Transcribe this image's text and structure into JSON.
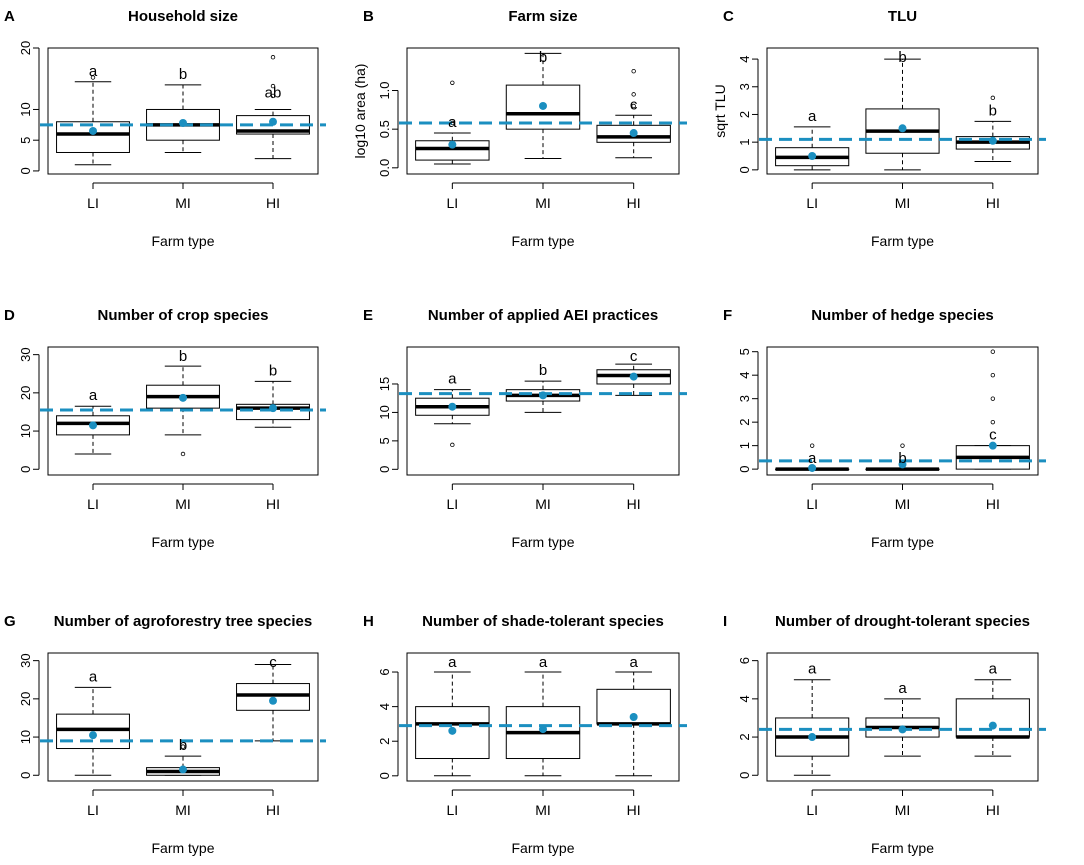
{
  "colors": {
    "mean": "#1b8fc0",
    "reference_line": "#1b8fc0"
  },
  "chart_data": [
    {
      "type": "box",
      "panel": "A",
      "title": "Household size",
      "xlabel": "Farm type",
      "ylabel": "",
      "ylim": [
        -0.5,
        20
      ],
      "yticks": [
        0,
        5,
        10,
        20
      ],
      "yticklabels": [
        "0",
        "5",
        "10",
        "20"
      ],
      "reference": 7.5,
      "groups": [
        {
          "label": "LI",
          "min": 1,
          "q1": 3,
          "median": 6,
          "q3": 8,
          "max": 14.5,
          "mean": 6.5,
          "outliers": [
            15.2
          ],
          "letter": "a"
        },
        {
          "label": "MI",
          "min": 3,
          "q1": 5,
          "median": 7.5,
          "q3": 10,
          "max": 14,
          "mean": 7.8,
          "outliers": [],
          "letter": "b"
        },
        {
          "label": "HI",
          "min": 2,
          "q1": 6,
          "median": 6.5,
          "q3": 9,
          "max": 10,
          "mean": 8,
          "outliers": [
            12.2,
            13.8,
            18.5
          ],
          "letter": "ab"
        }
      ]
    },
    {
      "type": "box",
      "panel": "B",
      "title": "Farm size",
      "xlabel": "Farm type",
      "ylabel": "log10 area (ha)",
      "ylim": [
        -0.08,
        1.55
      ],
      "yticks": [
        0.0,
        0.5,
        1.0
      ],
      "yticklabels": [
        "0.0",
        "0.5",
        "1.0"
      ],
      "reference": 0.58,
      "groups": [
        {
          "label": "LI",
          "min": 0.05,
          "q1": 0.1,
          "median": 0.25,
          "q3": 0.35,
          "max": 0.45,
          "mean": 0.3,
          "outliers": [
            0.58,
            1.1
          ],
          "letter": "a"
        },
        {
          "label": "MI",
          "min": 0.12,
          "q1": 0.5,
          "median": 0.7,
          "q3": 1.07,
          "max": 1.48,
          "mean": 0.8,
          "outliers": [],
          "letter": "b"
        },
        {
          "label": "HI",
          "min": 0.13,
          "q1": 0.33,
          "median": 0.4,
          "q3": 0.55,
          "max": 0.68,
          "mean": 0.45,
          "outliers": [
            0.8,
            0.95,
            1.25
          ],
          "letter": "c"
        }
      ]
    },
    {
      "type": "box",
      "panel": "C",
      "title": "TLU",
      "xlabel": "Farm type",
      "ylabel": "sqrt TLU",
      "ylim": [
        -0.15,
        4.4
      ],
      "yticks": [
        0,
        1,
        2,
        3,
        4
      ],
      "yticklabels": [
        "0",
        "1",
        "2",
        "3",
        "4"
      ],
      "reference": 1.1,
      "groups": [
        {
          "label": "LI",
          "min": 0,
          "q1": 0.15,
          "median": 0.45,
          "q3": 0.8,
          "max": 1.55,
          "mean": 0.5,
          "outliers": [],
          "letter": "a"
        },
        {
          "label": "MI",
          "min": 0,
          "q1": 0.6,
          "median": 1.4,
          "q3": 2.2,
          "max": 4,
          "mean": 1.5,
          "outliers": [],
          "letter": "b"
        },
        {
          "label": "HI",
          "min": 0.3,
          "q1": 0.75,
          "median": 1,
          "q3": 1.2,
          "max": 1.75,
          "mean": 1.05,
          "outliers": [
            2.6
          ],
          "letter": "b"
        }
      ]
    },
    {
      "type": "box",
      "panel": "D",
      "title": "Number of crop species",
      "xlabel": "Farm type",
      "ylabel": "",
      "ylim": [
        -1.5,
        32
      ],
      "yticks": [
        0,
        10,
        20,
        30
      ],
      "yticklabels": [
        "0",
        "10",
        "20",
        "30"
      ],
      "reference": 15.5,
      "groups": [
        {
          "label": "LI",
          "min": 4,
          "q1": 9,
          "median": 12,
          "q3": 14,
          "max": 16.5,
          "mean": 11.5,
          "outliers": [],
          "letter": "a"
        },
        {
          "label": "MI",
          "min": 9,
          "q1": 16,
          "median": 19,
          "q3": 22,
          "max": 27,
          "mean": 18.7,
          "outliers": [
            4
          ],
          "letter": "b"
        },
        {
          "label": "HI",
          "min": 11,
          "q1": 13,
          "median": 16,
          "q3": 17,
          "max": 23,
          "mean": 16,
          "outliers": [],
          "letter": "b"
        }
      ]
    },
    {
      "type": "box",
      "panel": "E",
      "title": "Number of applied AEI practices",
      "xlabel": "Farm type",
      "ylabel": "",
      "ylim": [
        -1,
        21.5
      ],
      "yticks": [
        0,
        5,
        10,
        15
      ],
      "yticklabels": [
        "0",
        "5",
        "10",
        "15"
      ],
      "reference": 13.3,
      "groups": [
        {
          "label": "LI",
          "min": 8,
          "q1": 9.5,
          "median": 11,
          "q3": 12.5,
          "max": 14,
          "mean": 11,
          "outliers": [
            4.3
          ],
          "letter": "a"
        },
        {
          "label": "MI",
          "min": 10,
          "q1": 12,
          "median": 13,
          "q3": 14,
          "max": 15.5,
          "mean": 13,
          "outliers": [],
          "letter": "b"
        },
        {
          "label": "HI",
          "min": 13,
          "q1": 15,
          "median": 16.5,
          "q3": 17.5,
          "max": 18.5,
          "mean": 16.3,
          "outliers": [],
          "letter": "c"
        }
      ]
    },
    {
      "type": "box",
      "panel": "F",
      "title": "Number of hedge species",
      "xlabel": "Farm type",
      "ylabel": "",
      "ylim": [
        -0.25,
        5.2
      ],
      "yticks": [
        0,
        1,
        2,
        3,
        4,
        5
      ],
      "yticklabels": [
        "0",
        "1",
        "2",
        "3",
        "4",
        "5"
      ],
      "reference": 0.35,
      "groups": [
        {
          "label": "LI",
          "min": 0,
          "q1": 0,
          "median": 0,
          "q3": 0,
          "max": 0,
          "mean": 0.05,
          "outliers": [
            1
          ],
          "letter": "a"
        },
        {
          "label": "MI",
          "min": 0,
          "q1": 0,
          "median": 0,
          "q3": 0,
          "max": 0,
          "mean": 0.2,
          "outliers": [
            1
          ],
          "letter": "b"
        },
        {
          "label": "HI",
          "min": 0,
          "q1": 0,
          "median": 0.5,
          "q3": 1,
          "max": 1,
          "mean": 1,
          "outliers": [
            2,
            3,
            4,
            5
          ],
          "letter": "c"
        }
      ]
    },
    {
      "type": "box",
      "panel": "G",
      "title": "Number of agroforestry tree species",
      "xlabel": "Farm type",
      "ylabel": "",
      "ylim": [
        -1.5,
        32
      ],
      "yticks": [
        0,
        10,
        20,
        30
      ],
      "yticklabels": [
        "0",
        "10",
        "20",
        "30"
      ],
      "reference": 9,
      "groups": [
        {
          "label": "LI",
          "min": 0,
          "q1": 7,
          "median": 12,
          "q3": 16,
          "max": 23,
          "mean": 10.5,
          "outliers": [],
          "letter": "a"
        },
        {
          "label": "MI",
          "min": 0,
          "q1": 0,
          "median": 1,
          "q3": 2,
          "max": 5,
          "mean": 1.5,
          "outliers": [
            7.5
          ],
          "letter": "b"
        },
        {
          "label": "HI",
          "min": 9,
          "q1": 17,
          "median": 21,
          "q3": 24,
          "max": 29,
          "mean": 19.5,
          "outliers": [],
          "letter": "c"
        }
      ]
    },
    {
      "type": "box",
      "panel": "H",
      "title": "Number of shade-tolerant species",
      "xlabel": "Farm type",
      "ylabel": "",
      "ylim": [
        -0.3,
        7.1
      ],
      "yticks": [
        0,
        2,
        4,
        6
      ],
      "yticklabels": [
        "0",
        "2",
        "4",
        "6"
      ],
      "reference": 2.9,
      "groups": [
        {
          "label": "LI",
          "min": 0,
          "q1": 1,
          "median": 3,
          "q3": 4,
          "max": 6,
          "mean": 2.6,
          "outliers": [],
          "letter": "a"
        },
        {
          "label": "MI",
          "min": 0,
          "q1": 1,
          "median": 2.5,
          "q3": 4,
          "max": 6,
          "mean": 2.7,
          "outliers": [],
          "letter": "a"
        },
        {
          "label": "HI",
          "min": 0,
          "q1": 3,
          "median": 3,
          "q3": 5,
          "max": 6,
          "mean": 3.4,
          "outliers": [],
          "letter": "a"
        }
      ]
    },
    {
      "type": "box",
      "panel": "I",
      "title": "Number of drought-tolerant species",
      "xlabel": "Farm type",
      "ylabel": "",
      "ylim": [
        -0.3,
        6.4
      ],
      "yticks": [
        0,
        2,
        4,
        6
      ],
      "yticklabels": [
        "0",
        "2",
        "4",
        "6"
      ],
      "reference": 2.4,
      "groups": [
        {
          "label": "LI",
          "min": 0,
          "q1": 1,
          "median": 2,
          "q3": 3,
          "max": 5,
          "mean": 2,
          "outliers": [],
          "letter": "a"
        },
        {
          "label": "MI",
          "min": 1,
          "q1": 2,
          "median": 2.5,
          "q3": 3,
          "max": 4,
          "mean": 2.4,
          "outliers": [],
          "letter": "a"
        },
        {
          "label": "HI",
          "min": 1,
          "q1": 2,
          "median": 2,
          "q3": 4,
          "max": 5,
          "mean": 2.6,
          "outliers": [],
          "letter": "a"
        }
      ]
    }
  ]
}
